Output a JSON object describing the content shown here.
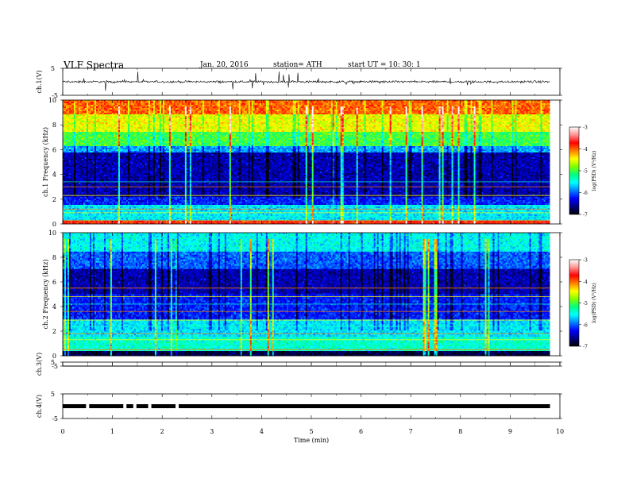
{
  "header": {
    "title": "VLF  Spectra",
    "date": "Jan. 20, 2016",
    "station": "station= ATH",
    "start": "start  UT  =   10: 30: 1"
  },
  "colors": {
    "scale": [
      "#000000",
      "#00007f",
      "#0000ff",
      "#0080ff",
      "#00ffff",
      "#00ff80",
      "#80ff00",
      "#ffff00",
      "#ff8000",
      "#ff0000",
      "#ff9090",
      "#ffffff"
    ]
  },
  "chart_data": [
    {
      "type": "line",
      "id": "ch1-waveform",
      "ylabel": "ch.1(V)",
      "ylim": [
        -5,
        5
      ],
      "yticks": [
        "5",
        "-5"
      ],
      "x_range": [
        0,
        9.8
      ],
      "trace_mean": 0,
      "trace_noise": 0.6,
      "spike_amplitude": 3.5
    },
    {
      "type": "heatmap",
      "id": "ch1-spectrogram",
      "ylabel": "ch.1 Frequency  (kHz)",
      "ylim": [
        0,
        10
      ],
      "yticks": [
        "0",
        "2",
        "4",
        "6",
        "8",
        "10"
      ],
      "x_range": [
        0,
        9.8
      ],
      "colorbar": {
        "label": "log(PSD) (V²/Hz)",
        "range": [
          -7,
          -3
        ],
        "ticks": [
          "-3",
          "-4",
          "-5",
          "-6",
          "-7"
        ]
      },
      "band_levels": [
        {
          "f": [
            0.0,
            0.3
          ],
          "v": -3.8
        },
        {
          "f": [
            0.3,
            1.5
          ],
          "v": -5.6
        },
        {
          "f": [
            1.5,
            2.2
          ],
          "v": -6.2
        },
        {
          "f": [
            2.2,
            5.8
          ],
          "v": -6.5
        },
        {
          "f": [
            5.8,
            6.3
          ],
          "v": -5.8
        },
        {
          "f": [
            6.3,
            7.5
          ],
          "v": -5.0
        },
        {
          "f": [
            7.5,
            8.8
          ],
          "v": -4.5
        },
        {
          "f": [
            8.8,
            10.0
          ],
          "v": -4.0
        }
      ],
      "lines_khz": [
        0.3,
        0.6,
        0.9,
        1.2,
        1.5,
        2.3,
        3.0,
        3.4
      ]
    },
    {
      "type": "heatmap",
      "id": "ch2-spectrogram",
      "ylabel": "ch.2 Frequency  (kHz)",
      "ylim": [
        0,
        10
      ],
      "yticks": [
        "0",
        "2",
        "4",
        "6",
        "8",
        "10"
      ],
      "x_range": [
        0,
        9.8
      ],
      "colorbar": {
        "label": "log(PSD) (V²/Hz)",
        "range": [
          -7,
          -3
        ],
        "ticks": [
          "-3",
          "-4",
          "-5",
          "-6",
          "-7"
        ]
      },
      "band_levels": [
        {
          "f": [
            0.0,
            0.4
          ],
          "v": -6.8
        },
        {
          "f": [
            0.4,
            1.6
          ],
          "v": -5.4
        },
        {
          "f": [
            1.6,
            3.0
          ],
          "v": -5.6
        },
        {
          "f": [
            3.0,
            5.0
          ],
          "v": -6.2
        },
        {
          "f": [
            5.0,
            7.0
          ],
          "v": -6.5
        },
        {
          "f": [
            7.0,
            8.5
          ],
          "v": -6.0
        },
        {
          "f": [
            8.5,
            10.0
          ],
          "v": -5.5
        }
      ],
      "lines_khz": [
        0.5,
        0.9,
        1.3,
        1.8,
        2.4,
        2.9,
        3.6,
        4.2,
        4.8,
        5.5
      ]
    },
    {
      "type": "line",
      "id": "ch3-waveform",
      "ylabel": "ch.3(V)",
      "ylim": [
        -5,
        5
      ],
      "yticks": [
        "5",
        "-5"
      ],
      "x_range": [
        0,
        9.8
      ],
      "trace_level": -5
    },
    {
      "type": "line",
      "id": "ch4-waveform",
      "ylabel": "ch.4(V)",
      "ylim": [
        -5,
        5
      ],
      "yticks": [
        "5",
        "-5"
      ],
      "x_range": [
        0,
        9.8
      ],
      "trace_level": 0,
      "gaps_min": [
        0.5,
        1.25,
        1.45,
        1.75,
        2.3
      ]
    }
  ],
  "x_axis": {
    "label": "Time  (min)",
    "range": [
      0,
      10
    ],
    "ticks": [
      "0",
      "1",
      "2",
      "3",
      "4",
      "5",
      "6",
      "7",
      "8",
      "9",
      "10"
    ]
  }
}
